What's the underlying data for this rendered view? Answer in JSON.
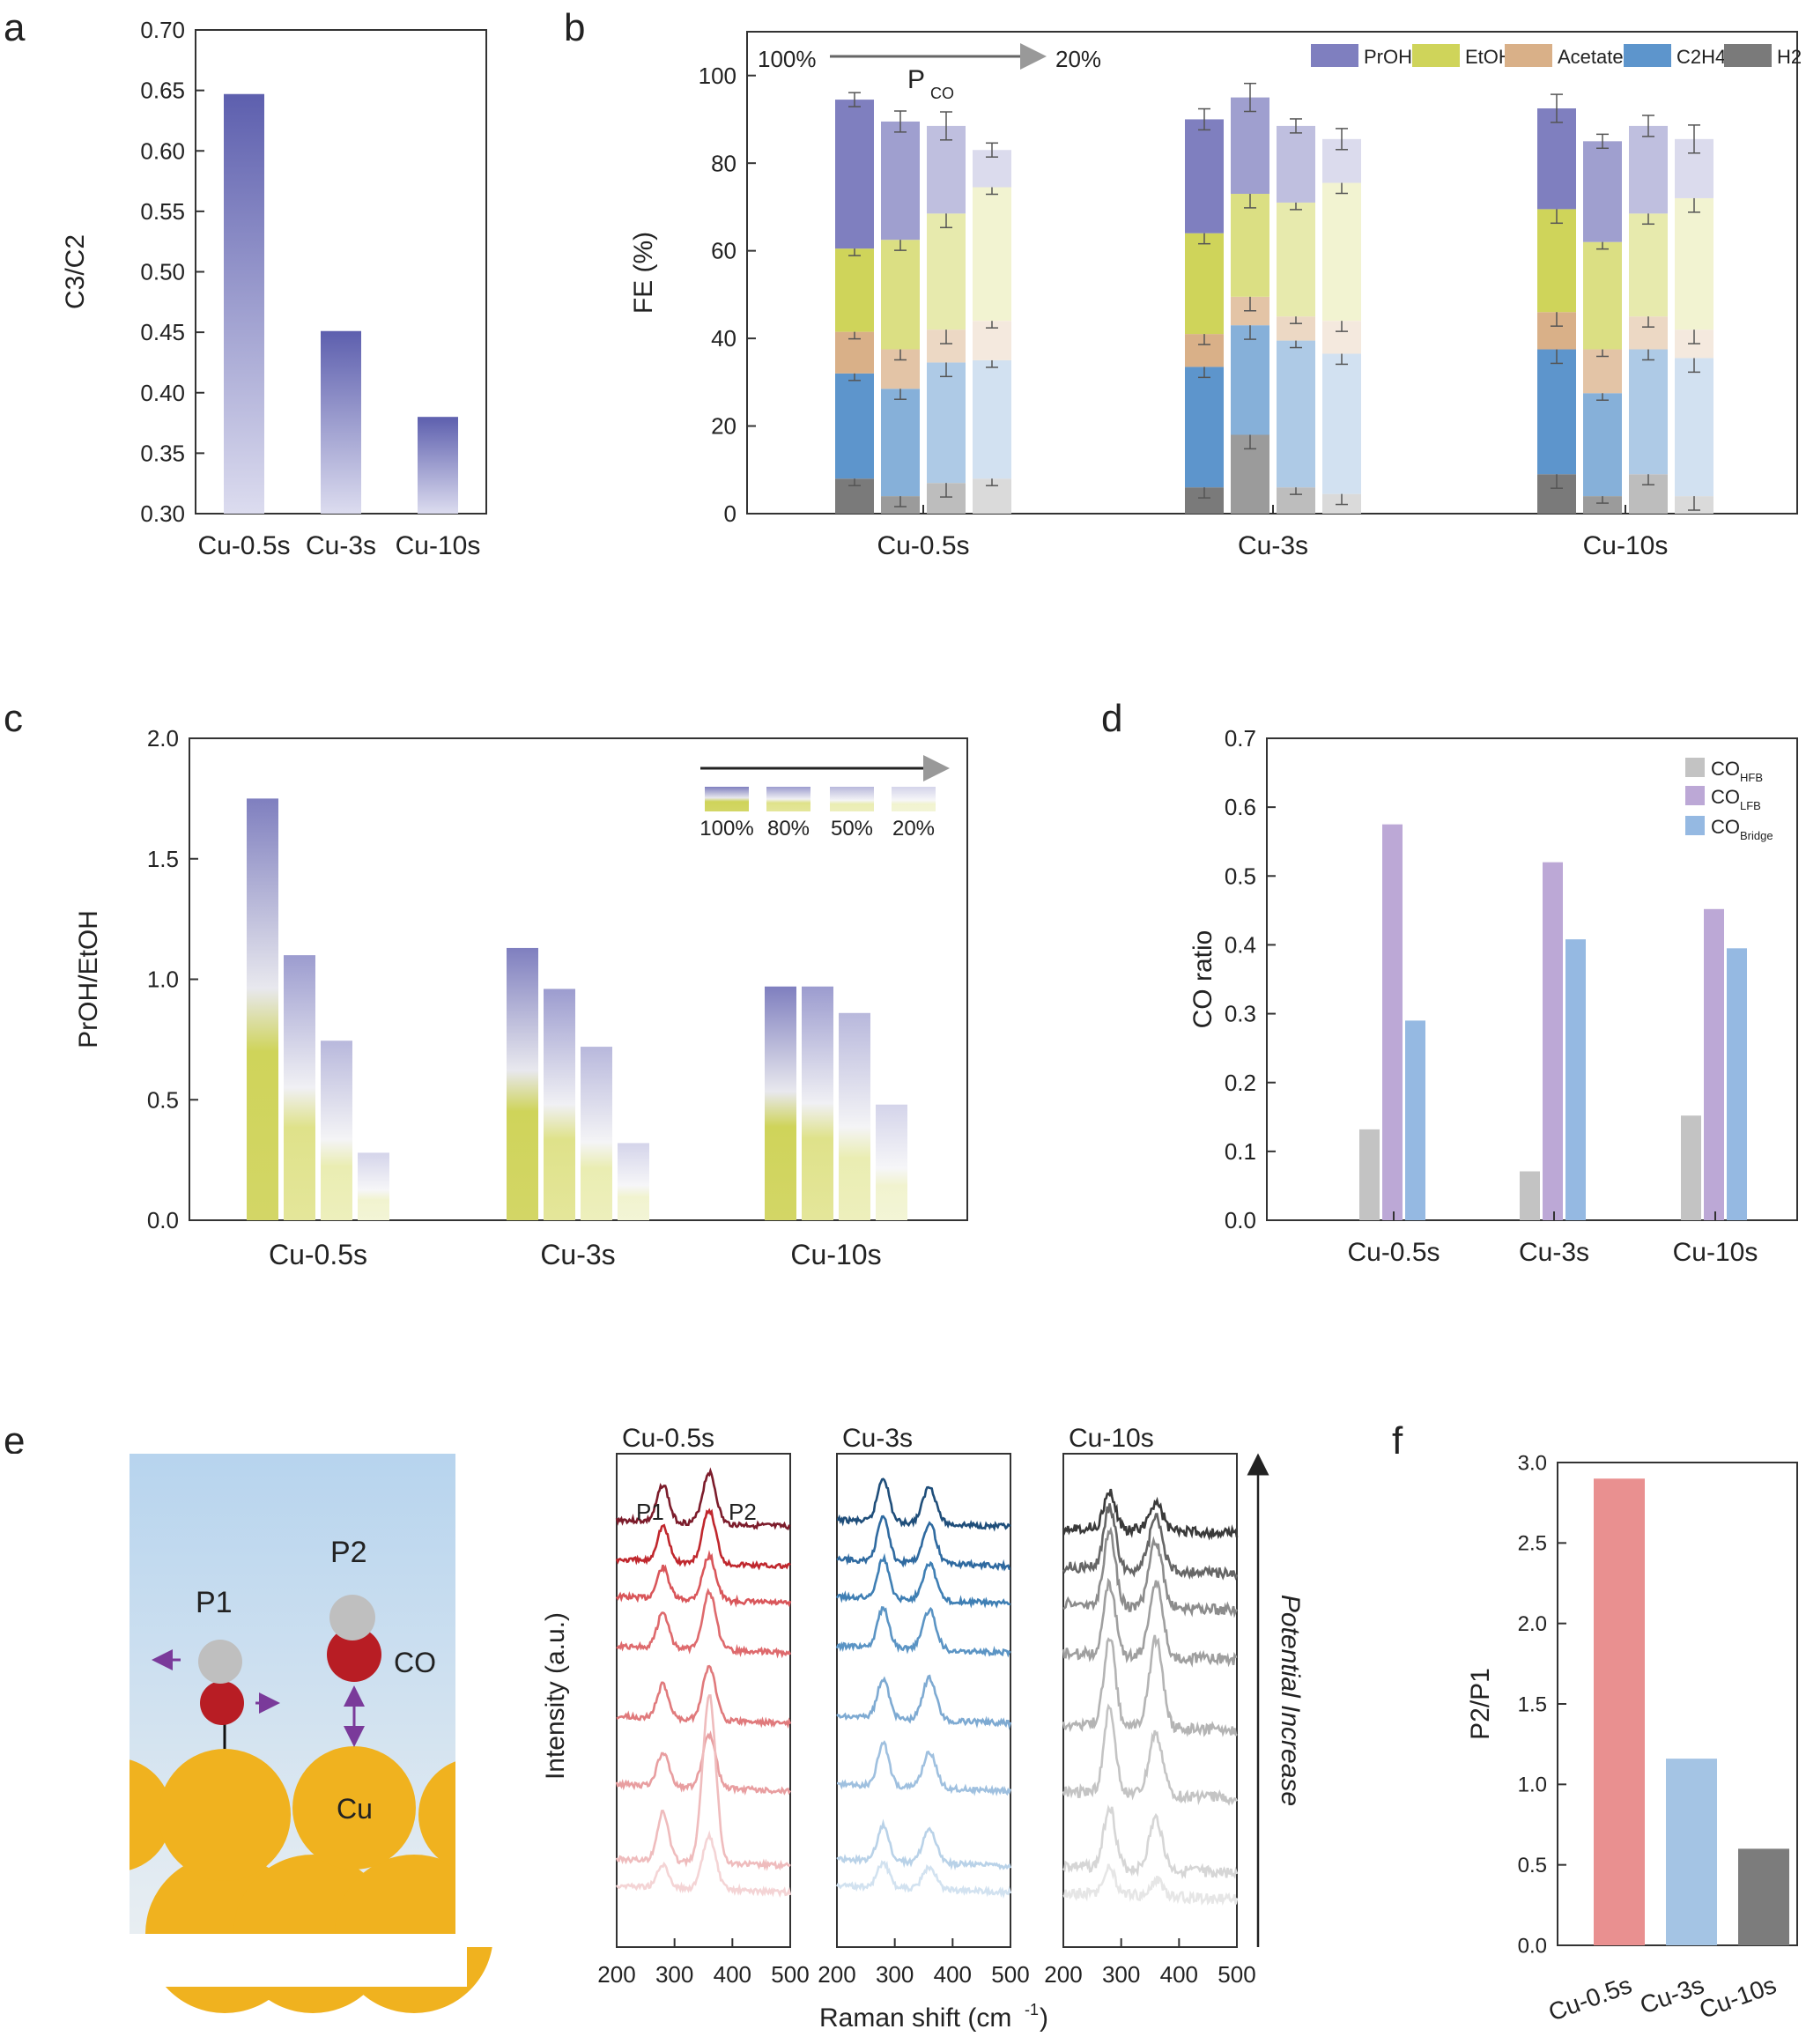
{
  "colors": {
    "proh": "#7f7fbf",
    "etoh": "#cfd45a",
    "acetate": "#d9b088",
    "c2h4": "#5d95cc",
    "h2": "#7a7a7a",
    "co_hfb": "#c3c3c3",
    "co_lfb": "#bca8d6",
    "co_bridge": "#95b9e2",
    "f_cu05": "#e99090",
    "f_cu3": "#a4c4e4",
    "f_cu10": "#7c7c7c"
  },
  "panels": {
    "a": "a",
    "b": "b",
    "c": "c",
    "d": "d",
    "e": "e",
    "f": "f"
  },
  "chart_data": [
    {
      "id": "a",
      "type": "bar",
      "categories": [
        "Cu-0.5s",
        "Cu-3s",
        "Cu-10s"
      ],
      "values": [
        0.647,
        0.451,
        0.38
      ],
      "ylabel": "C3/C2",
      "ylim": [
        0.3,
        0.7
      ],
      "yticks": [
        "0.30",
        "0.35",
        "0.40",
        "0.45",
        "0.50",
        "0.55",
        "0.60",
        "0.65",
        "0.70"
      ]
    },
    {
      "id": "b",
      "type": "bar",
      "stacked": true,
      "categories": [
        "Cu-0.5s",
        "Cu-3s",
        "Cu-10s"
      ],
      "pressure_levels": [
        "100%",
        "80%",
        "50%",
        "20%"
      ],
      "ylabel": "FE (%)",
      "ylim": [
        0,
        110
      ],
      "yticks": [
        "0",
        "20",
        "40",
        "60",
        "80",
        "100"
      ],
      "arrow_start": "100%",
      "arrow_end": "20%",
      "pco_label": "P",
      "pco_sub": "CO",
      "legend": [
        "PrOH",
        "EtOH",
        "Acetate",
        "C2H4",
        "H2"
      ],
      "series": [
        {
          "name": "H2",
          "values": [
            [
              8,
              4,
              7,
              8
            ],
            [
              6,
              18,
              6,
              4.5
            ],
            [
              9,
              4,
              9,
              4
            ]
          ]
        },
        {
          "name": "C2H4",
          "values": [
            [
              24,
              24.5,
              27.5,
              27
            ],
            [
              27.5,
              25,
              33.5,
              32
            ],
            [
              28.5,
              23.5,
              28.5,
              31.5
            ]
          ]
        },
        {
          "name": "Acetate",
          "values": [
            [
              9.5,
              9,
              7.5,
              9
            ],
            [
              7.5,
              6.5,
              5.5,
              7.5
            ],
            [
              8.5,
              10,
              7.5,
              6.5
            ]
          ]
        },
        {
          "name": "EtOH",
          "values": [
            [
              19,
              25,
              26.5,
              30.5
            ],
            [
              23,
              23.5,
              26,
              31.5
            ],
            [
              23.5,
              24.5,
              23.5,
              30
            ]
          ]
        },
        {
          "name": "PrOH",
          "values": [
            [
              34,
              27,
              20,
              8.5
            ],
            [
              26,
              22,
              17.5,
              10
            ],
            [
              23,
              23,
              20,
              13.5
            ]
          ]
        }
      ],
      "error_totals": [
        [
          3,
          1,
          4,
          1.5
        ],
        [
          3,
          4,
          4.5,
          0.6
        ],
        [
          4,
          2,
          1,
          3.8
        ]
      ]
    },
    {
      "id": "c",
      "type": "bar",
      "categories": [
        "Cu-0.5s",
        "Cu-3s",
        "Cu-10s"
      ],
      "series": [
        {
          "name": "100%",
          "values": [
            1.75,
            1.13,
            0.97
          ]
        },
        {
          "name": "80%",
          "values": [
            1.1,
            0.96,
            0.97
          ]
        },
        {
          "name": "50%",
          "values": [
            0.745,
            0.72,
            0.86
          ]
        },
        {
          "name": "20%",
          "values": [
            0.28,
            0.32,
            0.48
          ]
        }
      ],
      "ylabel": "PrOH/EtOH",
      "ylim": [
        0,
        2.0
      ],
      "yticks": [
        "0.0",
        "0.5",
        "1.0",
        "1.5",
        "2.0"
      ]
    },
    {
      "id": "d",
      "type": "bar",
      "categories": [
        "Cu-0.5s",
        "Cu-3s",
        "Cu-10s"
      ],
      "series": [
        {
          "name": "HFB",
          "values": [
            0.132,
            0.071,
            0.152
          ]
        },
        {
          "name": "LFB",
          "values": [
            0.575,
            0.52,
            0.452
          ]
        },
        {
          "name": "Bridge",
          "values": [
            0.29,
            0.408,
            0.395
          ]
        }
      ],
      "legend_main": "CO",
      "ylabel": "CO ratio",
      "ylim": [
        0,
        0.7
      ],
      "yticks": [
        "0.0",
        "0.1",
        "0.2",
        "0.3",
        "0.4",
        "0.5",
        "0.6",
        "0.7"
      ]
    },
    {
      "id": "e",
      "type": "line",
      "panels": [
        "Cu-0.5s",
        "Cu-3s",
        "Cu-10s"
      ],
      "xlim": [
        200,
        500
      ],
      "xticks": [
        "200",
        "300",
        "400",
        "500"
      ],
      "xlabel": "Raman shift (cm",
      "xlabel_sup": "-1",
      "xlabel_end": ")",
      "ylabel": "Intensity (a.u.)",
      "side_label": "Potential Increase",
      "peak_labels": [
        "P1",
        "P2"
      ],
      "peaks_cm1": [
        280,
        360
      ],
      "curves_per_panel": 8
    },
    {
      "id": "f",
      "type": "bar",
      "categories": [
        "Cu-0.5s",
        "Cu-3s",
        "Cu-10s"
      ],
      "values": [
        2.9,
        1.16,
        0.6
      ],
      "ylabel": "P2/P1",
      "ylim": [
        0,
        3.0
      ],
      "yticks": [
        "0.0",
        "0.5",
        "1.0",
        "1.5",
        "2.0",
        "2.5",
        "3.0"
      ]
    }
  ],
  "diagram": {
    "p1": "P1",
    "p2": "P2",
    "co": "CO",
    "cu": "Cu"
  }
}
